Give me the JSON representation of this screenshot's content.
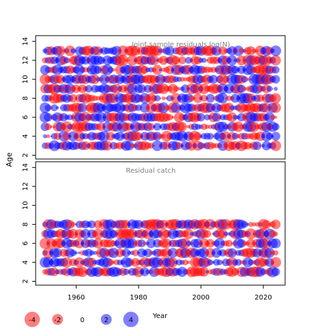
{
  "y_axis_label": "Age",
  "x_axis_label": "Year",
  "chart_data": [
    {
      "type": "scatter",
      "title": "Joint sample residuals log(N)",
      "ylabel": "Age",
      "xlabel": "Year",
      "xlim": [
        1947,
        2027
      ],
      "ylim": [
        1.6,
        14.6
      ],
      "x_ticks": [
        "1960",
        "1980",
        "2000",
        "2020"
      ],
      "y_ticks": [
        "2",
        "4",
        "6",
        "8",
        "10",
        "12",
        "14"
      ],
      "x_tick_values": [
        1960,
        1980,
        2000,
        2020
      ],
      "y_tick_values": [
        2,
        4,
        6,
        8,
        10,
        12,
        14
      ],
      "years": [
        1950,
        2024
      ],
      "ages": [
        3,
        13
      ],
      "description_of_marks": "bubble per (year, age); red = negative residual, blue = positive, area ~ |residual|"
    },
    {
      "type": "scatter",
      "title": "Residual catch",
      "ylabel": "Age",
      "xlabel": "Year",
      "xlim": [
        1947,
        2027
      ],
      "ylim": [
        1.6,
        14.6
      ],
      "x_ticks": [
        "1960",
        "1980",
        "2000",
        "2020"
      ],
      "y_ticks": [
        "2",
        "4",
        "6",
        "8",
        "10",
        "12",
        "14"
      ],
      "x_tick_values": [
        1960,
        1980,
        2000,
        2020
      ],
      "y_tick_values": [
        2,
        4,
        6,
        8,
        10,
        12,
        14
      ],
      "years": [
        1950,
        2024
      ],
      "ages": [
        3,
        8
      ]
    }
  ],
  "legend": {
    "items": [
      {
        "label": "-4",
        "value": -4,
        "color": "#ff0000"
      },
      {
        "label": "-2",
        "value": -2,
        "color": "#ff0000"
      },
      {
        "label": "0",
        "value": 0,
        "color": "#000000"
      },
      {
        "label": "2",
        "value": 2,
        "color": "#0000ff"
      },
      {
        "label": "4",
        "value": 4,
        "color": "#0000ff"
      }
    ]
  },
  "colors": {
    "negative": "#ff0000",
    "positive": "#0000ff",
    "title_text": "#7f7f7f"
  }
}
